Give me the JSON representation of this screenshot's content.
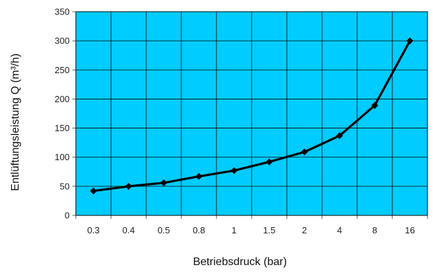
{
  "chart_data": {
    "type": "line",
    "categories": [
      "0.3",
      "0.4",
      "0.5",
      "0.8",
      "1",
      "1.5",
      "2",
      "4",
      "8",
      "16"
    ],
    "series": [
      {
        "values": [
          42,
          50,
          56,
          67,
          77,
          92,
          109,
          137,
          189,
          300
        ]
      }
    ],
    "title": "",
    "xlabel": "Betriebsdruck (bar)",
    "ylabel": "Entlüftungsleistung Q (m³/h)",
    "ylim": [
      0,
      350
    ],
    "yticks": [
      "0",
      "50",
      "100",
      "150",
      "200",
      "250",
      "300",
      "350"
    ],
    "grid": true,
    "legend": "none",
    "colors": {
      "plot_background": "#00CCFF",
      "grid": "#000000",
      "line": "#000000"
    }
  }
}
